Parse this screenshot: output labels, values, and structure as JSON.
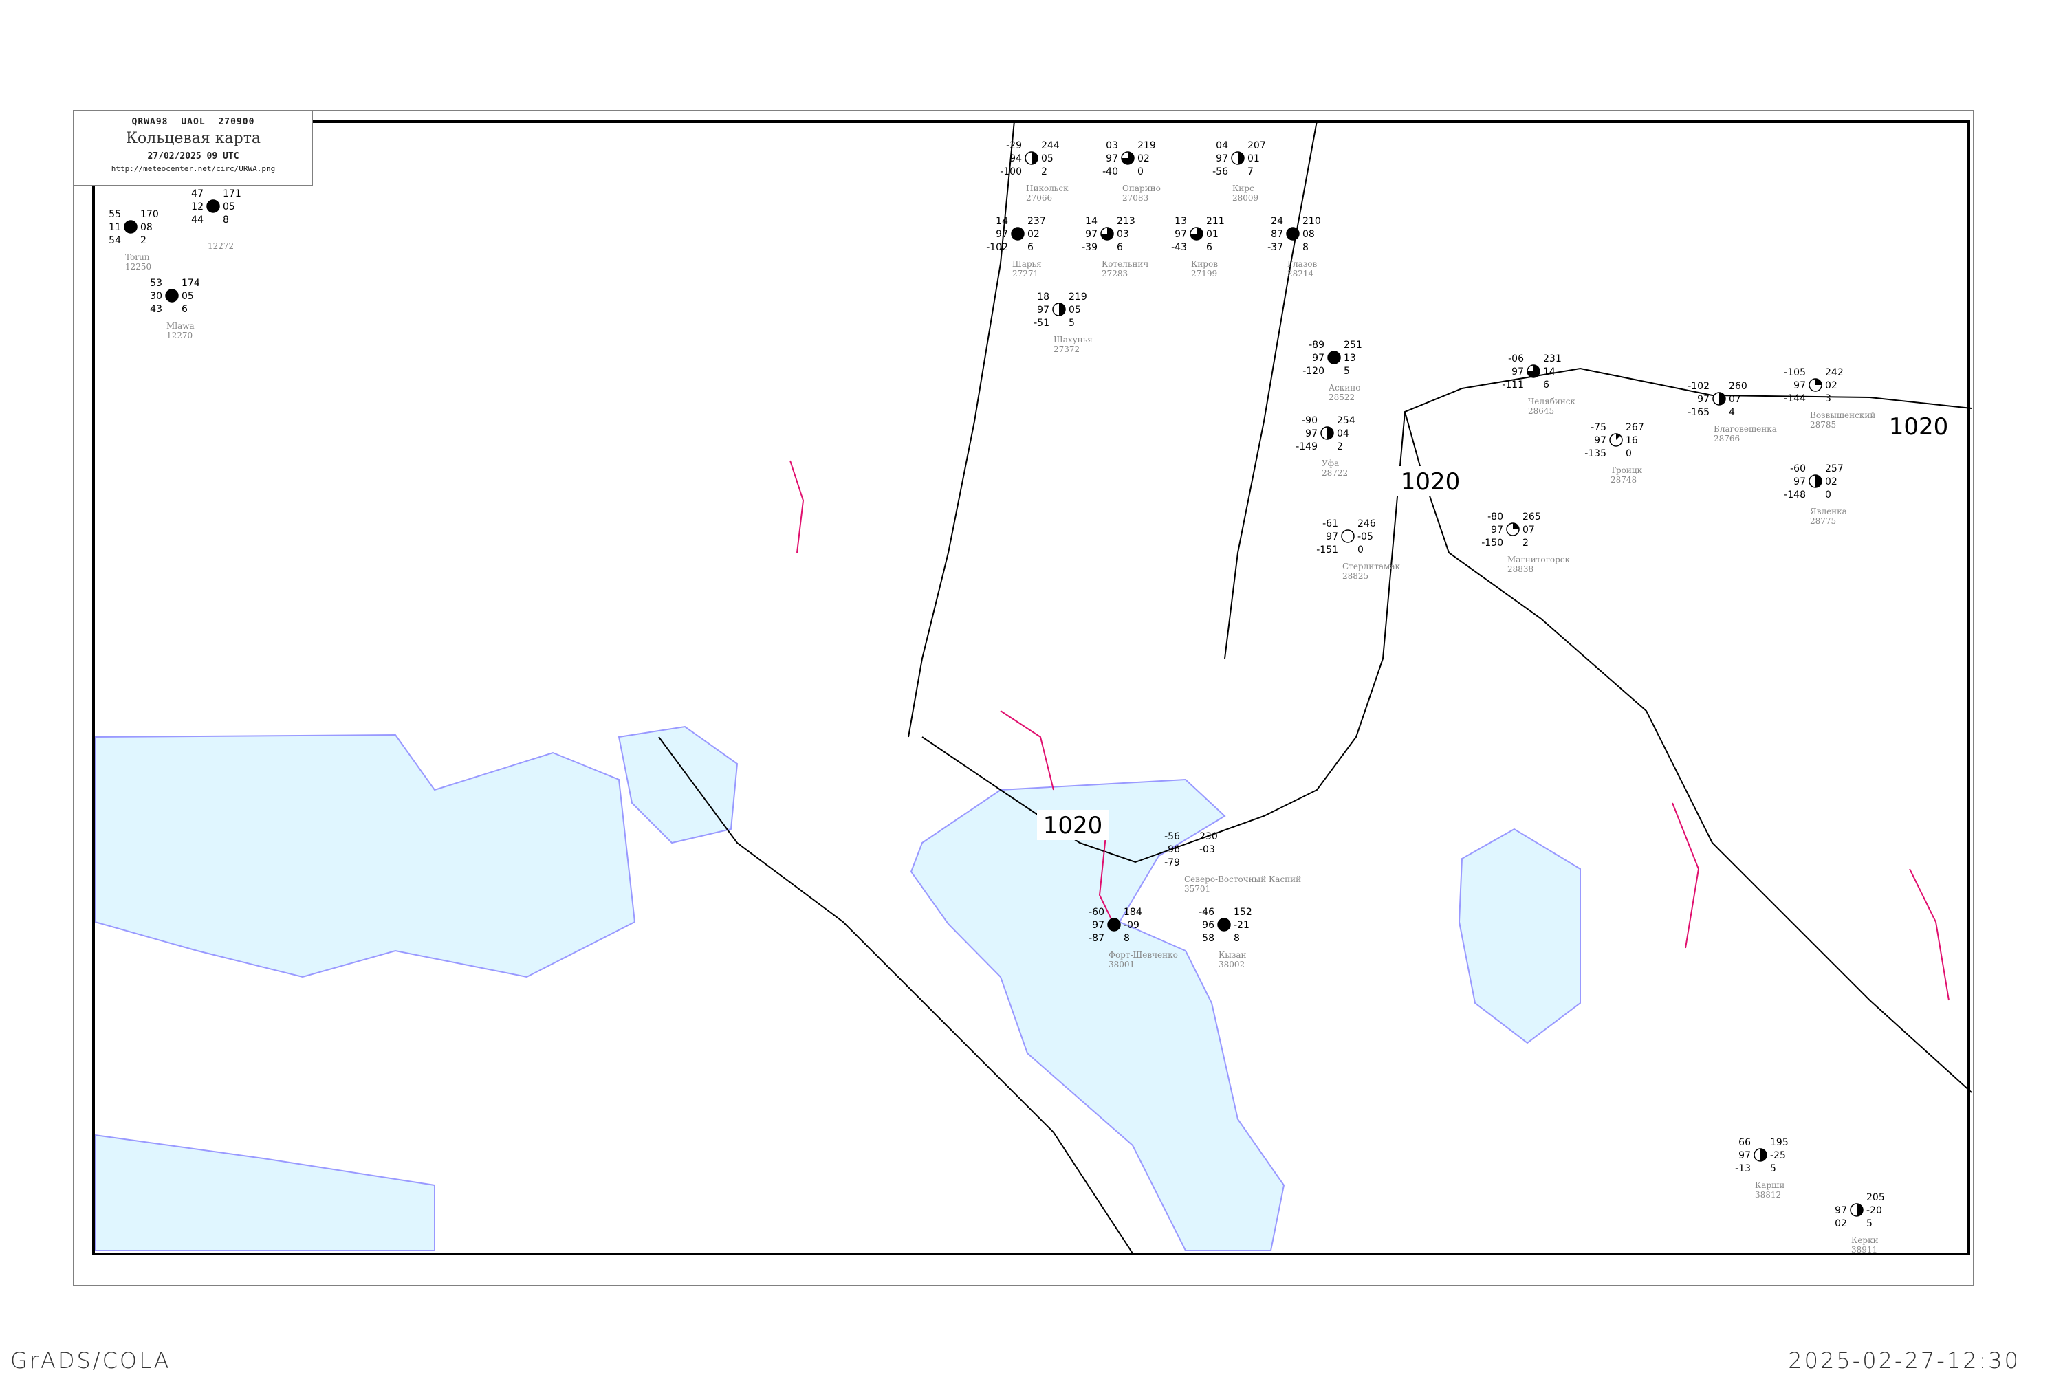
{
  "title_box": {
    "code_line": "QRWA98  UAOL  270900",
    "title": "Кольцевая карта",
    "date": "27/02/2025 09 UTC",
    "url": "http://meteocenter.net/circ/URWA.png"
  },
  "footer": {
    "left": "GrADS/COLA",
    "right": "2025-02-27-12:30"
  },
  "colors": {
    "isobar": "#000000",
    "coast": "#9999ff",
    "water": "#e0f6ff",
    "front": "#e0106e",
    "river": "#1e90ff",
    "station_name": "#888888",
    "precip_marker_blue": "#3399ff",
    "precip_marker_yellow": "#ffff99",
    "precip_marker_green": "#00cc33"
  },
  "isobar_labels": [
    "1020",
    "1020",
    "1020"
  ],
  "stations": [
    {
      "name": "Torun",
      "id": "12250",
      "temp": "55",
      "vis": "11",
      "dew": "54",
      "pressure": "170",
      "tendency": "08",
      "extra": "2",
      "cloud_octas": 8
    },
    {
      "name": "Mlawa",
      "id": "12270",
      "temp": "53",
      "vis": "30",
      "dew": "43",
      "pressure": "174",
      "tendency": "05",
      "extra": "6",
      "cloud_octas": 8
    },
    {
      "name": "",
      "id": "12272",
      "temp": "47",
      "vis": "12",
      "dew": "44",
      "pressure": "171",
      "tendency": "05",
      "extra": "8",
      "cloud_octas": 8
    },
    {
      "name": "Никольск",
      "id": "27066",
      "temp": "-29",
      "vis": "94",
      "dew": "-100",
      "pressure": "244",
      "tendency": "05",
      "extra": "2",
      "cloud_octas": 4
    },
    {
      "name": "Опарино",
      "id": "27083",
      "temp": "03",
      "vis": "97",
      "dew": "-40",
      "pressure": "219",
      "tendency": "02",
      "extra": "0",
      "cloud_octas": 6
    },
    {
      "name": "Шарья",
      "id": "27271",
      "temp": "14",
      "vis": "97",
      "dew": "-102",
      "pressure": "237",
      "tendency": "02",
      "extra": "6",
      "cloud_octas": 8
    },
    {
      "name": "Котельнич",
      "id": "27283",
      "temp": "14",
      "vis": "97",
      "dew": "-39",
      "pressure": "213",
      "tendency": "03",
      "extra": "6",
      "cloud_octas": 6
    },
    {
      "name": "Киров",
      "id": "27199",
      "temp": "13",
      "vis": "97",
      "dew": "-43",
      "pressure": "211",
      "tendency": "01",
      "extra": "6",
      "cloud_octas": 6
    },
    {
      "name": "Кирс",
      "id": "28009",
      "temp": "04",
      "vis": "97",
      "dew": "-56",
      "pressure": "207",
      "tendency": "01",
      "extra": "7",
      "cloud_octas": 4
    },
    {
      "name": "Глазов",
      "id": "28214",
      "temp": "24",
      "vis": "87",
      "dew": "-37",
      "pressure": "210",
      "tendency": "08",
      "extra": "8",
      "cloud_octas": 8
    },
    {
      "name": "Шахунья",
      "id": "27372",
      "temp": "18",
      "vis": "97",
      "dew": "-51",
      "pressure": "219",
      "tendency": "05",
      "extra": "5",
      "cloud_octas": 4
    },
    {
      "name": "Аскино",
      "id": "28522",
      "temp": "-89",
      "vis": "97",
      "dew": "-120",
      "pressure": "251",
      "tendency": "13",
      "extra": "5",
      "cloud_octas": 8
    },
    {
      "name": "Уфа",
      "id": "28722",
      "temp": "-90",
      "vis": "97",
      "dew": "-149",
      "pressure": "254",
      "tendency": "04",
      "extra": "2",
      "cloud_octas": 4
    },
    {
      "name": "Стерлитамак",
      "id": "28825",
      "temp": "-61",
      "vis": "97",
      "dew": "-151",
      "pressure": "246",
      "tendency": "-05",
      "extra": "0",
      "cloud_octas": 0
    },
    {
      "name": "Челябинск",
      "id": "28645",
      "temp": "-06",
      "vis": "97",
      "dew": "-111",
      "pressure": "231",
      "tendency": "14",
      "extra": "6",
      "cloud_octas": 6
    },
    {
      "name": "Троицк",
      "id": "28748",
      "temp": "-75",
      "vis": "97",
      "dew": "-135",
      "pressure": "267",
      "tendency": "16",
      "extra": "0",
      "cloud_octas": 1
    },
    {
      "name": "Магнитогорск",
      "id": "28838",
      "temp": "-80",
      "vis": "97",
      "dew": "-150",
      "pressure": "265",
      "tendency": "07",
      "extra": "2",
      "cloud_octas": 2
    },
    {
      "name": "Благовещенка",
      "id": "28766",
      "temp": "-102",
      "vis": "97",
      "dew": "-165",
      "pressure": "260",
      "tendency": "07",
      "extra": "4",
      "cloud_octas": 4
    },
    {
      "name": "Явленка",
      "id": "28775",
      "temp": "-60",
      "vis": "97",
      "dew": "-148",
      "pressure": "257",
      "tendency": "02",
      "extra": "0",
      "cloud_octas": 4
    },
    {
      "name": "Возвышенский",
      "id": "28785",
      "temp": "-105",
      "vis": "97",
      "dew": "-144",
      "pressure": "242",
      "tendency": "02",
      "extra": "3",
      "cloud_octas": 2
    },
    {
      "name": "Северо-Восточный Каспий",
      "id": "35701",
      "temp": "-56",
      "vis": "96",
      "dew": "-79",
      "pressure": "230",
      "tendency": "-03",
      "extra": "",
      "cloud_octas": -1
    },
    {
      "name": "Форт-Шевченко",
      "id": "38001",
      "temp": "-60",
      "vis": "97",
      "dew": "-87",
      "pressure": "184",
      "tendency": "-09",
      "extra": "8",
      "cloud_octas": 8
    },
    {
      "name": "Кызан",
      "id": "38002",
      "temp": "-46",
      "vis": "96",
      "dew": "58",
      "pressure": "152",
      "tendency": "-21",
      "extra": "8",
      "cloud_octas": 8
    },
    {
      "name": "Карши",
      "id": "38812",
      "temp": "66",
      "vis": "97",
      "dew": "-13",
      "pressure": "195",
      "tendency": "-25",
      "extra": "5",
      "cloud_octas": 4
    },
    {
      "name": "Керки",
      "id": "38911",
      "temp": "",
      "vis": "97",
      "dew": "02",
      "pressure": "205",
      "tendency": "-20",
      "extra": "5",
      "cloud_octas": 4
    }
  ]
}
